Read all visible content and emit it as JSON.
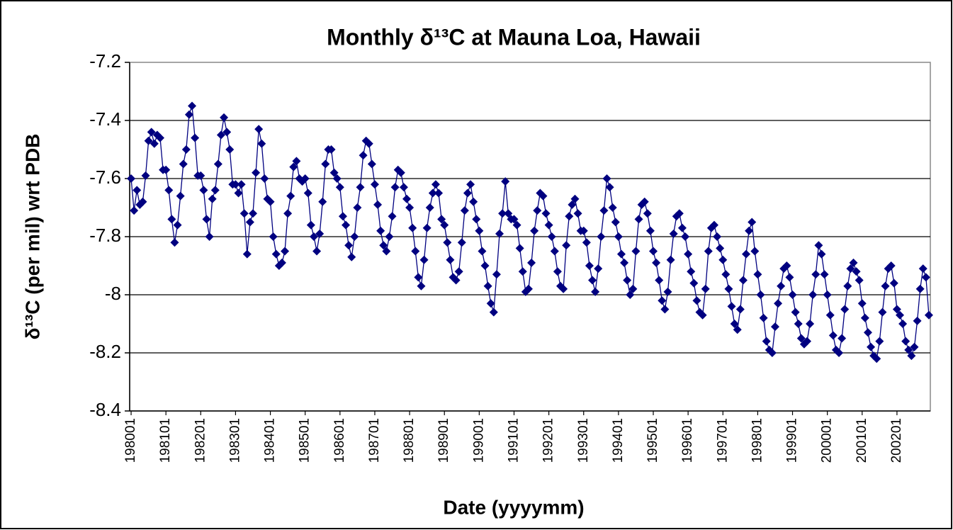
{
  "chart_data": {
    "type": "line",
    "title": "Monthly δ¹³C at Mauna Loa, Hawaii",
    "x_label": "Date (yyyymm)",
    "y_label": "δ¹³C (per mil) wrt PDB",
    "color": "#000080",
    "grid": true,
    "ylim": [
      -8.4,
      -7.2
    ],
    "yticks": [
      -7.2,
      -7.4,
      -7.6,
      -7.8,
      -8,
      -8.2,
      -8.4
    ],
    "categories": [
      "198001",
      null,
      null,
      null,
      null,
      null,
      null,
      null,
      null,
      null,
      null,
      null,
      "198101",
      null,
      null,
      null,
      null,
      null,
      null,
      null,
      null,
      null,
      null,
      null,
      "198201",
      null,
      null,
      null,
      null,
      null,
      null,
      null,
      null,
      null,
      null,
      null,
      "198301",
      null,
      null,
      null,
      null,
      null,
      null,
      null,
      null,
      null,
      null,
      null,
      "198401",
      null,
      null,
      null,
      null,
      null,
      null,
      null,
      null,
      null,
      null,
      null,
      "198501",
      null,
      null,
      null,
      null,
      null,
      null,
      null,
      null,
      null,
      null,
      null,
      "198601",
      null,
      null,
      null,
      null,
      null,
      null,
      null,
      null,
      null,
      null,
      null,
      "198701",
      null,
      null,
      null,
      null,
      null,
      null,
      null,
      null,
      null,
      null,
      null,
      "198801",
      null,
      null,
      null,
      null,
      null,
      null,
      null,
      null,
      null,
      null,
      null,
      "198901",
      null,
      null,
      null,
      null,
      null,
      null,
      null,
      null,
      null,
      null,
      null,
      "199001",
      null,
      null,
      null,
      null,
      null,
      null,
      null,
      null,
      null,
      null,
      null,
      "199101",
      null,
      null,
      null,
      null,
      null,
      null,
      null,
      null,
      null,
      null,
      null,
      "199201",
      null,
      null,
      null,
      null,
      null,
      null,
      null,
      null,
      null,
      null,
      null,
      "199301",
      null,
      null,
      null,
      null,
      null,
      null,
      null,
      null,
      null,
      null,
      null,
      "199401",
      null,
      null,
      null,
      null,
      null,
      null,
      null,
      null,
      null,
      null,
      null,
      "199501",
      null,
      null,
      null,
      null,
      null,
      null,
      null,
      null,
      null,
      null,
      null,
      "199601",
      null,
      null,
      null,
      null,
      null,
      null,
      null,
      null,
      null,
      null,
      null,
      "199701",
      null,
      null,
      null,
      null,
      null,
      null,
      null,
      null,
      null,
      null,
      null,
      "199801",
      null,
      null,
      null,
      null,
      null,
      null,
      null,
      null,
      null,
      null,
      null,
      "199901",
      null,
      null,
      null,
      null,
      null,
      null,
      null,
      null,
      null,
      null,
      null,
      "200001",
      null,
      null,
      null,
      null,
      null,
      null,
      null,
      null,
      null,
      null,
      null,
      "200101",
      null,
      null,
      null,
      null,
      null,
      null,
      null,
      null,
      null,
      null,
      null,
      "200201",
      null,
      null,
      null,
      null,
      null,
      null,
      null,
      null,
      null,
      null,
      null
    ],
    "values": [
      -7.6,
      -7.71,
      -7.64,
      -7.69,
      -7.68,
      -7.59,
      -7.47,
      -7.44,
      -7.48,
      -7.45,
      -7.46,
      -7.57,
      -7.57,
      -7.64,
      -7.74,
      -7.82,
      -7.76,
      -7.66,
      -7.55,
      -7.5,
      -7.38,
      -7.35,
      -7.46,
      -7.59,
      -7.59,
      -7.64,
      -7.74,
      -7.8,
      -7.67,
      -7.64,
      -7.55,
      -7.45,
      -7.39,
      -7.44,
      -7.5,
      -7.62,
      -7.62,
      -7.65,
      -7.62,
      -7.72,
      -7.86,
      -7.75,
      -7.72,
      -7.58,
      -7.43,
      -7.48,
      -7.6,
      -7.67,
      -7.68,
      -7.8,
      -7.86,
      -7.9,
      -7.89,
      -7.85,
      -7.72,
      -7.66,
      -7.56,
      -7.54,
      -7.6,
      -7.61,
      -7.6,
      -7.65,
      -7.76,
      -7.8,
      -7.85,
      -7.79,
      -7.68,
      -7.55,
      -7.5,
      -7.5,
      -7.58,
      -7.6,
      -7.63,
      -7.73,
      -7.76,
      -7.83,
      -7.87,
      -7.8,
      -7.7,
      -7.63,
      -7.52,
      -7.47,
      -7.48,
      -7.55,
      -7.62,
      -7.69,
      -7.78,
      -7.83,
      -7.85,
      -7.8,
      -7.73,
      -7.63,
      -7.57,
      -7.58,
      -7.63,
      -7.67,
      -7.7,
      -7.77,
      -7.85,
      -7.94,
      -7.97,
      -7.88,
      -7.77,
      -7.7,
      -7.65,
      -7.62,
      -7.65,
      -7.74,
      -7.76,
      -7.82,
      -7.88,
      -7.94,
      -7.95,
      -7.92,
      -7.82,
      -7.71,
      -7.65,
      -7.62,
      -7.68,
      -7.74,
      -7.78,
      -7.85,
      -7.9,
      -7.97,
      -8.03,
      -8.06,
      -7.93,
      -7.79,
      -7.72,
      -7.61,
      -7.72,
      -7.74,
      -7.74,
      -7.76,
      -7.84,
      -7.92,
      -7.99,
      -7.98,
      -7.89,
      -7.78,
      -7.71,
      -7.65,
      -7.66,
      -7.72,
      -7.76,
      -7.8,
      -7.85,
      -7.92,
      -7.97,
      -7.98,
      -7.83,
      -7.73,
      -7.69,
      -7.67,
      -7.72,
      -7.78,
      -7.78,
      -7.82,
      -7.9,
      -7.95,
      -7.99,
      -7.91,
      -7.8,
      -7.71,
      -7.6,
      -7.63,
      -7.7,
      -7.75,
      -7.8,
      -7.86,
      -7.89,
      -7.95,
      -8.0,
      -7.98,
      -7.85,
      -7.74,
      -7.69,
      -7.68,
      -7.72,
      -7.78,
      -7.85,
      -7.89,
      -7.95,
      -8.02,
      -8.05,
      -7.99,
      -7.88,
      -7.79,
      -7.73,
      -7.72,
      -7.77,
      -7.8,
      -7.86,
      -7.92,
      -7.96,
      -8.02,
      -8.06,
      -8.07,
      -7.98,
      -7.85,
      -7.77,
      -7.76,
      -7.8,
      -7.84,
      -7.88,
      -7.93,
      -7.98,
      -8.04,
      -8.1,
      -8.12,
      -8.05,
      -7.95,
      -7.86,
      -7.78,
      -7.75,
      -7.85,
      -7.93,
      -8.0,
      -8.08,
      -8.16,
      -8.19,
      -8.2,
      -8.11,
      -8.03,
      -7.97,
      -7.91,
      -7.9,
      -7.94,
      -8.0,
      -8.06,
      -8.1,
      -8.15,
      -8.17,
      -8.16,
      -8.1,
      -8.0,
      -7.93,
      -7.83,
      -7.86,
      -7.93,
      -8.0,
      -8.07,
      -8.14,
      -8.19,
      -8.2,
      -8.15,
      -8.05,
      -7.97,
      -7.91,
      -7.89,
      -7.92,
      -7.95,
      -8.03,
      -8.08,
      -8.13,
      -8.18,
      -8.21,
      -8.22,
      -8.16,
      -8.06,
      -7.97,
      -7.91,
      -7.9,
      -7.96,
      -8.05,
      -8.07,
      -8.1,
      -8.16,
      -8.19,
      -8.21,
      -8.18,
      -8.09,
      -7.98,
      -7.91,
      -7.94,
      -8.07
    ]
  }
}
